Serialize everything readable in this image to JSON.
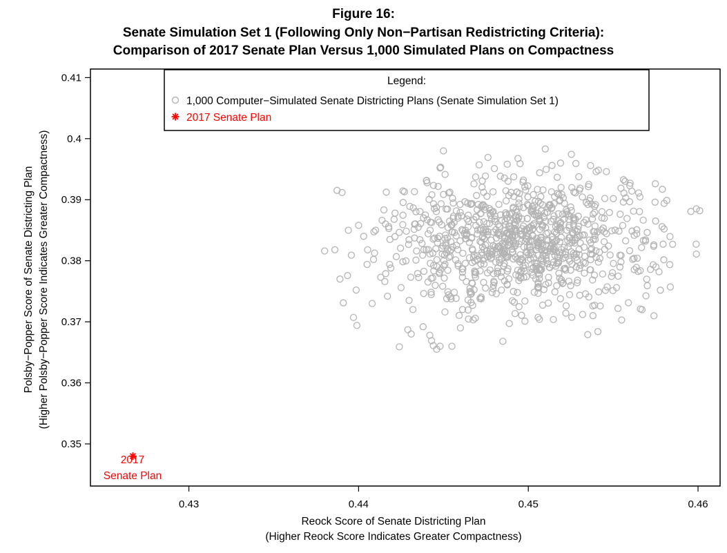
{
  "figure": {
    "label": "Figure 16:",
    "title_line1": "Senate Simulation Set 1 (Following Only Non−Partisan Redistricting Criteria):",
    "title_line2": "Comparison of 2017 Senate Plan Versus 1,000 Simulated Plans on Compactness"
  },
  "chart_data": {
    "type": "scatter",
    "title": "Senate Simulation Set 1 (Following Only Non−Partisan Redistricting Criteria): Comparison of 2017 Senate Plan Versus 1,000 Simulated Plans on Compactness",
    "xlabel": "Reock Score of Senate Districting Plan",
    "xlabel_sub": "(Higher Reock Score Indicates Greater Compactness)",
    "ylabel": "Polsby−Popper Score of Senate Districting Plan",
    "ylabel_sub": "(Higher Polsby−Popper Score Indicates Greater Compactness)",
    "xlim": [
      0.4242,
      0.4613
    ],
    "ylim": [
      0.3431,
      0.4114
    ],
    "x_ticks": [
      0.43,
      0.44,
      0.45,
      0.46
    ],
    "x_tick_labels": [
      "0.43",
      "0.44",
      "0.45",
      "0.46"
    ],
    "y_ticks": [
      0.35,
      0.36,
      0.37,
      0.38,
      0.39,
      0.4,
      0.41
    ],
    "y_tick_labels": [
      "0.35",
      "0.36",
      "0.37",
      "0.38",
      "0.39",
      "0.4",
      "0.41"
    ],
    "grid": false,
    "legend": {
      "title": "Legend:",
      "placement": "top-center",
      "entries": [
        "1,000 Computer−Simulated Senate Districting Plans (Senate Simulation Set 1)",
        "2017 Senate Plan"
      ]
    },
    "series": [
      {
        "name": "1,000 Computer−Simulated Senate Districting Plans (Senate Simulation Set 1)",
        "marker": "open-circle",
        "color": "#b3b3b3",
        "count": 1000,
        "x_mean": 0.4495,
        "x_sd": 0.0036,
        "y_mean": 0.383,
        "y_sd": 0.0052,
        "x_range": [
          0.438,
          0.46
        ],
        "y_range": [
          0.3655,
          0.3983
        ],
        "points": [
          [
            0.438,
            0.3816
          ],
          [
            0.4386,
            0.3818
          ],
          [
            0.4389,
            0.377
          ],
          [
            0.4391,
            0.3731
          ],
          [
            0.4394,
            0.385
          ],
          [
            0.4397,
            0.3707
          ],
          [
            0.4399,
            0.3694
          ],
          [
            0.44,
            0.3858
          ],
          [
            0.4403,
            0.384
          ],
          [
            0.4405,
            0.3794
          ],
          [
            0.4408,
            0.373
          ],
          [
            0.441,
            0.385
          ],
          [
            0.4413,
            0.3773
          ],
          [
            0.4416,
            0.3779
          ],
          [
            0.4417,
            0.3742
          ],
          [
            0.4419,
            0.3788
          ],
          [
            0.4424,
            0.3659
          ],
          [
            0.4425,
            0.3756
          ],
          [
            0.4427,
            0.3913
          ],
          [
            0.4429,
            0.3687
          ],
          [
            0.4431,
            0.368
          ],
          [
            0.4432,
            0.372
          ],
          [
            0.4433,
            0.386
          ],
          [
            0.4438,
            0.3692
          ],
          [
            0.444,
            0.3931
          ],
          [
            0.4442,
            0.3678
          ],
          [
            0.4443,
            0.3669
          ],
          [
            0.4444,
            0.3661
          ],
          [
            0.4446,
            0.3655
          ],
          [
            0.4448,
            0.3952
          ],
          [
            0.4448,
            0.366
          ],
          [
            0.445,
            0.398
          ],
          [
            0.4455,
            0.366
          ],
          [
            0.446,
            0.369
          ],
          [
            0.4485,
            0.3668
          ],
          [
            0.4498,
            0.3701
          ],
          [
            0.451,
            0.3983
          ],
          [
            0.4514,
            0.3956
          ],
          [
            0.4519,
            0.396
          ],
          [
            0.4532,
            0.3712
          ],
          [
            0.4535,
            0.3679
          ],
          [
            0.4538,
            0.3726
          ],
          [
            0.454,
            0.3946
          ],
          [
            0.4541,
            0.3684
          ],
          [
            0.4546,
            0.3946
          ],
          [
            0.4552,
            0.3756
          ],
          [
            0.4555,
            0.3703
          ],
          [
            0.4557,
            0.393
          ],
          [
            0.456,
            0.3927
          ],
          [
            0.4561,
            0.3914
          ],
          [
            0.4565,
            0.3911
          ],
          [
            0.4566,
            0.3721
          ],
          [
            0.4569,
            0.3832
          ],
          [
            0.4572,
            0.3786
          ],
          [
            0.4574,
            0.3826
          ],
          [
            0.4575,
            0.3865
          ],
          [
            0.4577,
            0.3782
          ],
          [
            0.4579,
            0.3917
          ],
          [
            0.458,
            0.3894
          ],
          [
            0.458,
            0.3852
          ],
          [
            0.4585,
            0.3827
          ],
          [
            0.4599,
            0.3885
          ],
          [
            0.4599,
            0.3811
          ],
          [
            0.4601,
            0.3882
          ]
        ]
      },
      {
        "name": "2017 Senate Plan",
        "marker": "asterisk",
        "color": "#ff0000",
        "points": [
          [
            0.4267,
            0.348
          ]
        ],
        "label_line1": "2017",
        "label_line2": "Senate Plan"
      }
    ]
  }
}
